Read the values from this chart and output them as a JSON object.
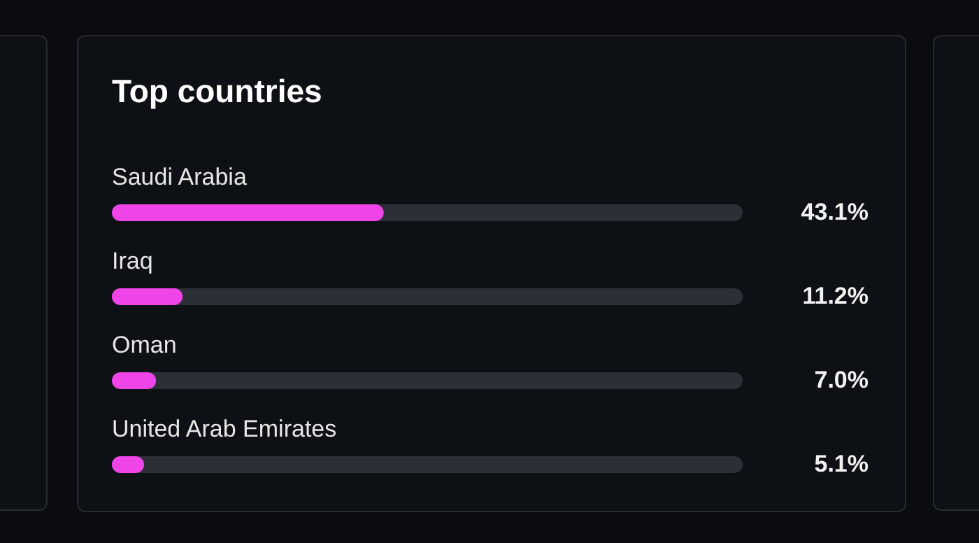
{
  "chart_data": {
    "type": "bar",
    "orientation": "horizontal",
    "title": "Top countries",
    "categories": [
      "Saudi Arabia",
      "Iraq",
      "Oman",
      "United Arab Emirates"
    ],
    "values": [
      43.1,
      11.2,
      7.0,
      5.1
    ],
    "value_labels": [
      "43.1%",
      "11.2%",
      "7.0%",
      "5.1%"
    ],
    "color": "#ee44e8",
    "xlim": [
      0,
      100
    ],
    "tick_labels": false
  }
}
